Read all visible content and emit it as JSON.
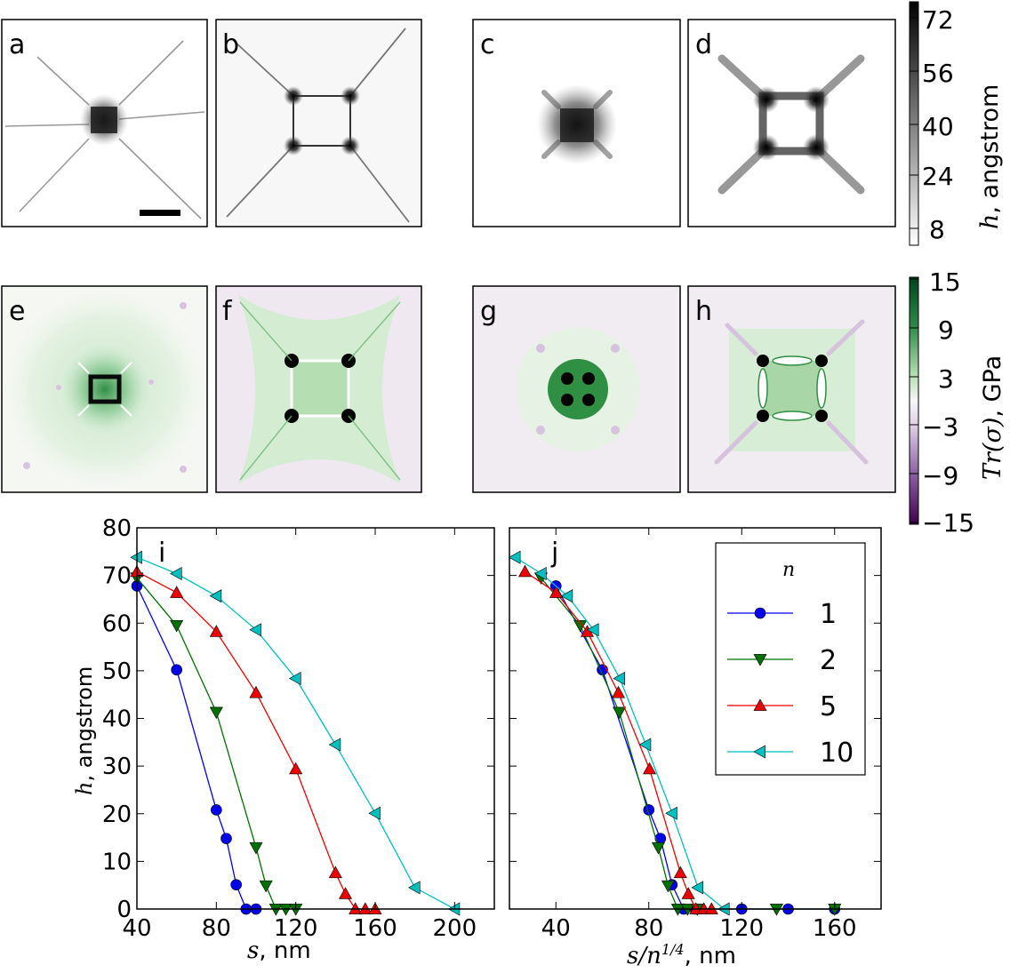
{
  "colors": {
    "n1": "#0000ee",
    "n2": "#007000",
    "n5": "#ee0000",
    "n10": "#00bfbf",
    "green_dark": "#0b5a24",
    "purple_dark": "#4a0050"
  },
  "height_maps": {
    "labels": [
      "a",
      "b",
      "c",
      "d"
    ],
    "colorbar": {
      "ticks": [
        "72",
        "56",
        "40",
        "24",
        "8"
      ],
      "label_var": "h",
      "label_unit": ", angstrom"
    }
  },
  "stress_maps": {
    "labels": [
      "e",
      "f",
      "g",
      "h"
    ],
    "colorbar": {
      "ticks": [
        "15",
        "9",
        "3",
        "−3",
        "−9",
        "−15"
      ],
      "label_var": "Tr(σ)",
      "label_unit": ", GPa"
    }
  },
  "chart_data": [
    {
      "type": "line",
      "panel": "i",
      "xlabel_var": "s",
      "xlabel_unit": ", nm",
      "ylabel_var": "h",
      "ylabel_unit": ", angstrom",
      "xlim": [
        40,
        220
      ],
      "ylim": [
        0,
        80
      ],
      "xticks": [
        40,
        80,
        120,
        160,
        200
      ],
      "yticks": [
        0,
        10,
        20,
        30,
        40,
        50,
        60,
        70,
        80
      ],
      "series": [
        {
          "name": "1",
          "marker": "circle",
          "color_key": "n1",
          "x": [
            40,
            60,
            80,
            85,
            90,
            95,
            100
          ],
          "y": [
            67.8,
            50.2,
            20.8,
            14.8,
            5.1,
            0,
            0
          ]
        },
        {
          "name": "2",
          "marker": "triangle-down",
          "color_key": "n2",
          "x": [
            40,
            60,
            80,
            100,
            105,
            110,
            115,
            120
          ],
          "y": [
            69.5,
            59.5,
            41.3,
            12.9,
            4.9,
            0,
            0,
            0
          ]
        },
        {
          "name": "5",
          "marker": "triangle-up",
          "color_key": "n5",
          "x": [
            40,
            60,
            80,
            100,
            120,
            140,
            145,
            150,
            155,
            160
          ],
          "y": [
            70.8,
            66.4,
            58.2,
            45.4,
            29.4,
            7.6,
            3.2,
            0,
            0,
            0
          ]
        },
        {
          "name": "10",
          "marker": "triangle-left",
          "color_key": "n10",
          "x": [
            40,
            60,
            80,
            100,
            120,
            140,
            160,
            180,
            200
          ],
          "y": [
            73.8,
            70.4,
            65.7,
            58.6,
            48.4,
            34.5,
            20.1,
            4.5,
            0
          ]
        }
      ]
    },
    {
      "type": "line",
      "panel": "j",
      "xlabel_var": "s/n",
      "xlabel_exp": "1/4",
      "xlabel_unit": ", nm",
      "xlim": [
        20,
        180
      ],
      "ylim": [
        0,
        80
      ],
      "xticks": [
        40,
        80,
        120,
        160
      ],
      "legend_title": "n",
      "legend_loc": "upper right",
      "series": [
        {
          "name": "1",
          "marker": "circle",
          "color_key": "n1",
          "x": [
            40,
            60,
            80,
            85,
            90,
            95,
            100,
            120,
            140,
            160
          ],
          "y": [
            67.8,
            50.2,
            20.8,
            14.8,
            5.1,
            0,
            0,
            0,
            0,
            0
          ]
        },
        {
          "name": "2",
          "marker": "triangle-down",
          "color_key": "n2",
          "x": [
            33.6,
            50.5,
            67.3,
            84.1,
            88.3,
            92.5,
            96.7,
            100.9,
            135,
            160
          ],
          "y": [
            69.5,
            59.5,
            41.3,
            12.9,
            4.9,
            0,
            0,
            0,
            0,
            0
          ]
        },
        {
          "name": "5",
          "marker": "triangle-up",
          "color_key": "n5",
          "x": [
            26.7,
            40.1,
            53.5,
            66.9,
            80.3,
            93.6,
            97.0,
            100.3,
            103.7,
            107.0
          ],
          "y": [
            70.8,
            66.4,
            58.2,
            45.4,
            29.4,
            7.6,
            3.2,
            0,
            0,
            0
          ]
        },
        {
          "name": "10",
          "marker": "triangle-left",
          "color_key": "n10",
          "x": [
            22.5,
            33.7,
            45.0,
            56.2,
            67.5,
            78.7,
            90.0,
            101.2,
            112.5
          ],
          "y": [
            73.8,
            70.4,
            65.7,
            58.6,
            48.4,
            34.5,
            20.1,
            4.5,
            0
          ]
        }
      ]
    }
  ]
}
